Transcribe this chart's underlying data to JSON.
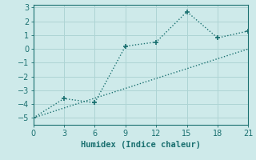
{
  "line1_x": [
    0,
    3,
    6,
    9,
    12,
    15,
    18,
    21
  ],
  "line1_y": [
    -5,
    -3.6,
    -3.9,
    0.2,
    0.5,
    2.7,
    0.8,
    1.3
  ],
  "line2_x": [
    0,
    3,
    6,
    9,
    12,
    15,
    18,
    21
  ],
  "line2_y": [
    -5,
    -4.28,
    -3.57,
    -2.86,
    -2.14,
    -1.43,
    -0.71,
    0.0
  ],
  "color": "#1a7070",
  "bg_color": "#ceeaea",
  "grid_color": "#aed4d4",
  "xlabel": "Humidex (Indice chaleur)",
  "xlim": [
    0,
    21
  ],
  "ylim": [
    -5.5,
    3.2
  ],
  "xticks": [
    0,
    3,
    6,
    9,
    12,
    15,
    18,
    21
  ],
  "yticks": [
    -5,
    -4,
    -3,
    -2,
    -1,
    0,
    1,
    2,
    3
  ],
  "markersize": 4,
  "linewidth": 1.0,
  "font_family": "monospace"
}
